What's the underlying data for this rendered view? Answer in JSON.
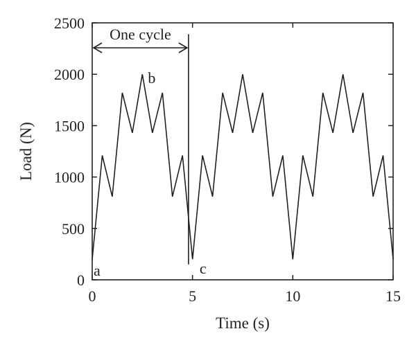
{
  "chart_data": {
    "type": "line",
    "xlabel": "Time (s)",
    "ylabel": "Load (N)",
    "xlim": [
      0,
      15
    ],
    "ylim": [
      0,
      2500
    ],
    "xticks": [
      0,
      5,
      10,
      15
    ],
    "yticks": [
      0,
      500,
      1000,
      1500,
      2000,
      2500
    ],
    "grid": false,
    "series": [
      {
        "x": [
          0,
          0.5,
          1.0,
          1.5,
          2.0,
          2.5,
          3.0,
          3.5,
          4.0,
          4.5,
          5.0,
          5.5,
          6.0,
          6.5,
          7.0,
          7.5,
          8.0,
          8.5,
          9.0,
          9.5,
          10.0,
          10.5,
          11.0,
          11.5,
          12.0,
          12.5,
          13.0,
          13.5,
          14.0,
          14.5,
          15.0
        ],
        "y": [
          200,
          1210,
          810,
          1820,
          1430,
          2000,
          1430,
          1820,
          810,
          1210,
          200,
          1210,
          810,
          1820,
          1430,
          2000,
          1430,
          1820,
          810,
          1210,
          200,
          1210,
          810,
          1820,
          1430,
          2000,
          1430,
          1820,
          810,
          1210,
          200
        ]
      }
    ],
    "annotations": {
      "cycle_label": "One cycle",
      "cycle_start": 0,
      "cycle_end": 4.8,
      "cycle_line_ymin": 150,
      "cycle_line_ymax": 2390,
      "point_a": "a",
      "point_b": "b",
      "point_c": "c"
    }
  }
}
